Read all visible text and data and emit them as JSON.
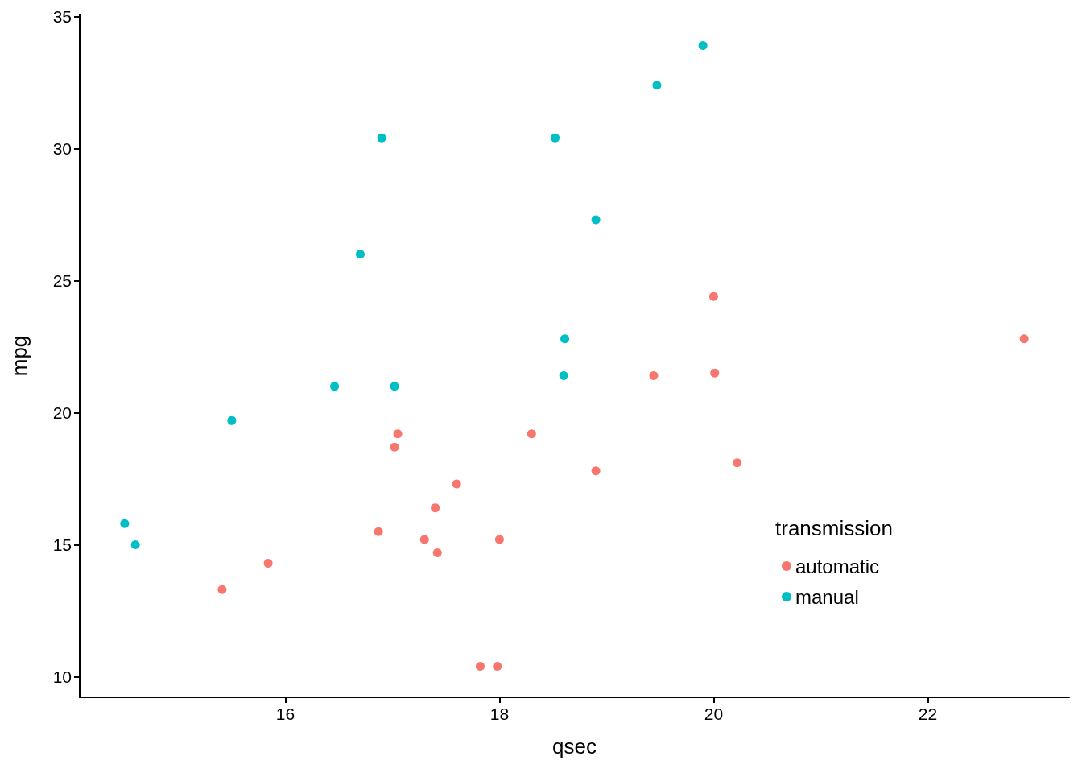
{
  "chart_data": {
    "type": "scatter",
    "xlabel": "qsec",
    "ylabel": "mpg",
    "legend_title": "transmission",
    "legend": "bottom right",
    "grid": false,
    "marker": "circle",
    "xlim": [
      14.08,
      23.32
    ],
    "xticks": [
      16,
      18,
      20,
      22
    ],
    "ylim": [
      9.225,
      35.075
    ],
    "yticks": [
      10,
      15,
      20,
      25,
      30,
      35
    ],
    "series": [
      {
        "name": "automatic",
        "color": "#f8766d",
        "x": [
          19.44,
          17.02,
          20.22,
          15.84,
          20.0,
          22.9,
          18.3,
          18.9,
          17.4,
          17.6,
          18.0,
          17.98,
          17.82,
          17.42,
          20.01,
          16.87,
          17.3,
          15.41,
          17.05
        ],
        "values": [
          21.4,
          18.7,
          18.1,
          14.3,
          24.4,
          22.8,
          19.2,
          17.8,
          16.4,
          17.3,
          15.2,
          10.4,
          10.4,
          14.7,
          21.5,
          15.5,
          15.2,
          13.3,
          19.2
        ]
      },
      {
        "name": "manual",
        "color": "#00bfc4",
        "x": [
          16.46,
          17.02,
          18.61,
          19.47,
          18.52,
          19.9,
          18.9,
          16.7,
          16.9,
          14.5,
          15.5,
          14.6,
          18.6
        ],
        "values": [
          21.0,
          21.0,
          22.8,
          32.4,
          30.4,
          33.9,
          27.3,
          26.0,
          30.4,
          15.8,
          19.7,
          15.0,
          21.4
        ]
      }
    ]
  }
}
